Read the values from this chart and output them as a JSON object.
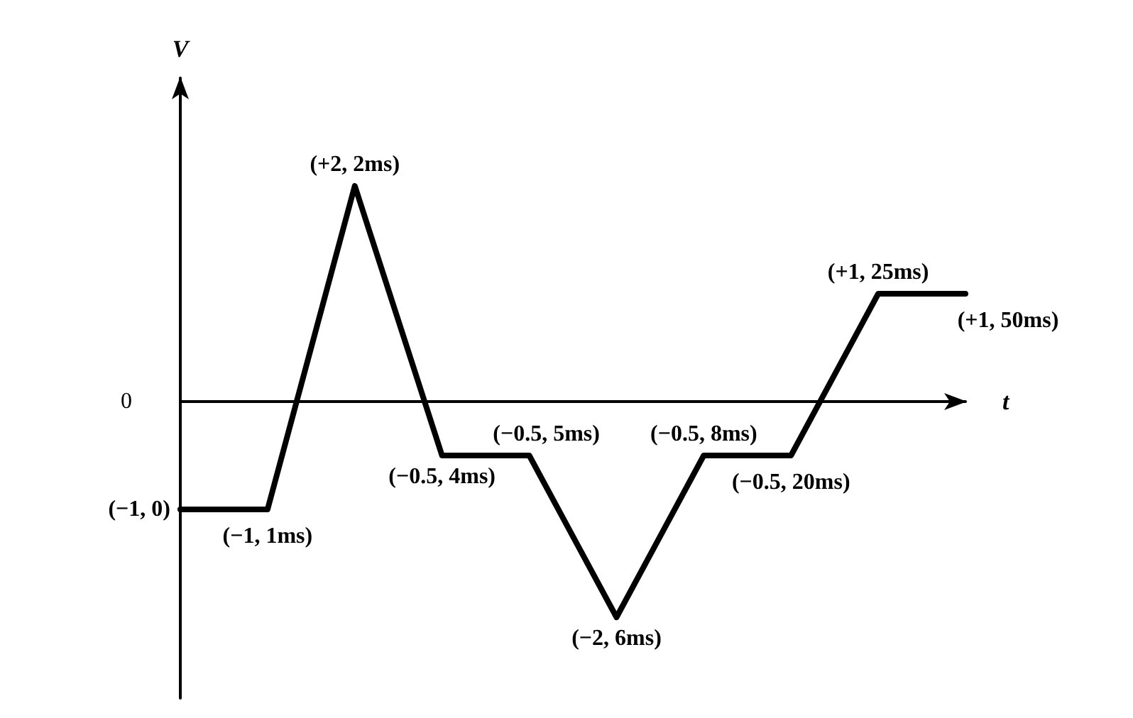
{
  "chart_data": {
    "type": "line",
    "xlabel": "t",
    "ylabel": "V",
    "categories": [
      null,
      null,
      null,
      null,
      null,
      null,
      null,
      null,
      null,
      null
    ],
    "values": [
      -1,
      -1,
      2,
      -0.5,
      -0.5,
      -2,
      -0.5,
      -0.5,
      1,
      1
    ],
    "value_labels": [
      "(−1, 0)",
      "(−1, 1ms)",
      "(+2, 2ms)",
      "(−0.5, 4ms)",
      "(−0.5, 5ms)",
      "(−2, 6ms)",
      "(−0.5, 8ms)",
      "(−0.5, 20ms)",
      "(+1, 25ms)",
      "(+1, 50ms)"
    ],
    "color": "#000000",
    "marker": "none",
    "ylim": [
      -2.75,
      3
    ],
    "tick_labels": false,
    "annotations": [
      "0"
    ]
  }
}
